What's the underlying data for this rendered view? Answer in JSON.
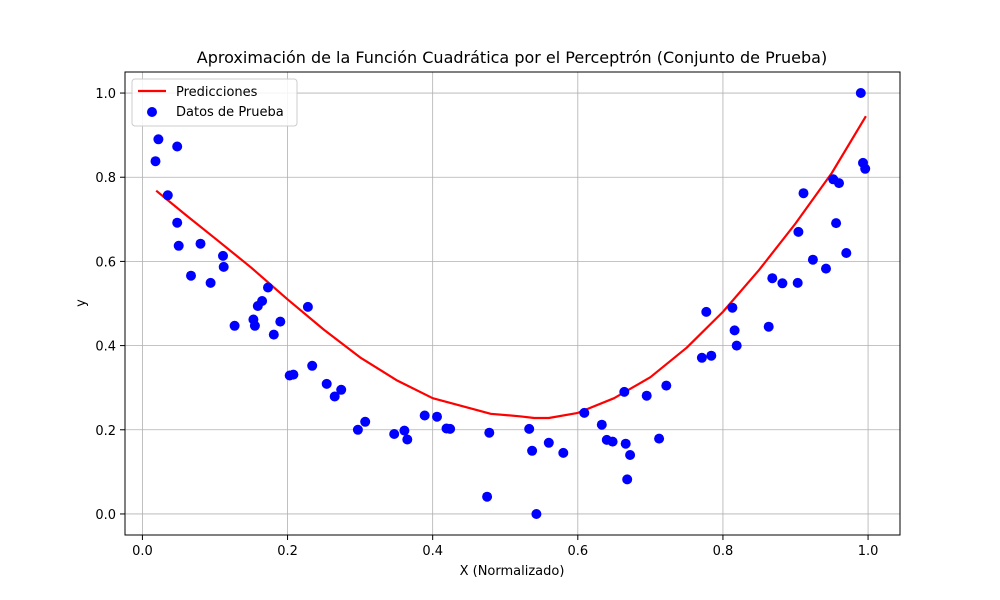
{
  "chart_data": {
    "type": "scatter",
    "title": "Aproximación de la Función Cuadrática por el Perceptrón (Conjunto de Prueba)",
    "xlabel": "X (Normalizado)",
    "ylabel": "y",
    "xlim": [
      -0.024,
      1.044
    ],
    "ylim": [
      -0.05,
      1.05
    ],
    "xticks": [
      0.0,
      0.2,
      0.4,
      0.6,
      0.8,
      1.0
    ],
    "xtick_labels": [
      "0.0",
      "0.2",
      "0.4",
      "0.6",
      "0.8",
      "1.0"
    ],
    "yticks": [
      0.0,
      0.2,
      0.4,
      0.6,
      0.8,
      1.0
    ],
    "ytick_labels": [
      "0.0",
      "0.2",
      "0.4",
      "0.6",
      "0.8",
      "1.0"
    ],
    "grid": true,
    "legend_position": "top-left",
    "series": [
      {
        "name": "Predicciones",
        "kind": "line",
        "color": "#ff0000",
        "x": [
          0.019,
          0.06,
          0.1,
          0.15,
          0.2,
          0.25,
          0.3,
          0.35,
          0.4,
          0.45,
          0.48,
          0.52,
          0.54,
          0.56,
          0.6,
          0.65,
          0.7,
          0.75,
          0.8,
          0.85,
          0.9,
          0.95,
          0.997
        ],
        "y": [
          0.768,
          0.71,
          0.655,
          0.585,
          0.51,
          0.438,
          0.372,
          0.318,
          0.275,
          0.252,
          0.238,
          0.232,
          0.228,
          0.228,
          0.24,
          0.275,
          0.325,
          0.395,
          0.48,
          0.58,
          0.69,
          0.81,
          0.945
        ]
      },
      {
        "name": "Datos de Prueba",
        "kind": "scatter",
        "color": "#0000ff",
        "x": [
          0.018,
          0.022,
          0.035,
          0.048,
          0.048,
          0.05,
          0.067,
          0.08,
          0.094,
          0.111,
          0.112,
          0.127,
          0.153,
          0.155,
          0.159,
          0.165,
          0.173,
          0.181,
          0.19,
          0.203,
          0.208,
          0.228,
          0.234,
          0.254,
          0.265,
          0.274,
          0.297,
          0.307,
          0.347,
          0.361,
          0.365,
          0.389,
          0.406,
          0.419,
          0.424,
          0.475,
          0.478,
          0.533,
          0.537,
          0.543,
          0.56,
          0.58,
          0.609,
          0.633,
          0.64,
          0.648,
          0.664,
          0.666,
          0.668,
          0.672,
          0.695,
          0.712,
          0.722,
          0.771,
          0.777,
          0.784,
          0.813,
          0.816,
          0.819,
          0.863,
          0.868,
          0.882,
          0.903,
          0.904,
          0.911,
          0.924,
          0.942,
          0.952,
          0.956,
          0.96,
          0.97,
          0.99,
          0.993,
          0.996
        ],
        "y": [
          0.838,
          0.89,
          0.757,
          0.692,
          0.873,
          0.637,
          0.566,
          0.642,
          0.549,
          0.613,
          0.587,
          0.447,
          0.462,
          0.447,
          0.494,
          0.506,
          0.538,
          0.426,
          0.457,
          0.329,
          0.331,
          0.492,
          0.352,
          0.309,
          0.279,
          0.295,
          0.2,
          0.219,
          0.19,
          0.198,
          0.177,
          0.234,
          0.231,
          0.203,
          0.202,
          0.041,
          0.193,
          0.202,
          0.15,
          0.0,
          0.169,
          0.145,
          0.24,
          0.212,
          0.176,
          0.172,
          0.29,
          0.167,
          0.082,
          0.14,
          0.281,
          0.179,
          0.305,
          0.371,
          0.48,
          0.376,
          0.49,
          0.436,
          0.4,
          0.445,
          0.56,
          0.548,
          0.549,
          0.67,
          0.762,
          0.604,
          0.583,
          0.795,
          0.691,
          0.786,
          0.62,
          1.0,
          0.834,
          0.82
        ]
      }
    ]
  }
}
